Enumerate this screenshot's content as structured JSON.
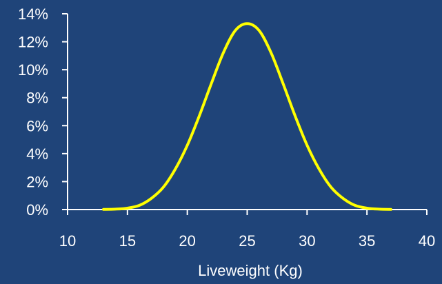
{
  "colors": {
    "background": "#1f4479",
    "axis": "#ffffff",
    "line": "#ffff00"
  },
  "chart_data": {
    "type": "line",
    "title": "",
    "xlabel": "Liveweight (Kg)",
    "ylabel": "",
    "xlim": [
      10,
      40
    ],
    "ylim": [
      0,
      14
    ],
    "x_ticks": [
      "10",
      "15",
      "20",
      "25",
      "30",
      "35",
      "40"
    ],
    "y_ticks": [
      "0%",
      "2%",
      "4%",
      "6%",
      "8%",
      "10%",
      "12%",
      "14%"
    ],
    "grid": false,
    "legend": "none",
    "series": [
      {
        "color": "#ffff00",
        "x": [
          13,
          14,
          15,
          16,
          17,
          18,
          19,
          20,
          21,
          22,
          23,
          24,
          25,
          26,
          27,
          28,
          29,
          30,
          31,
          32,
          33,
          34,
          35,
          36,
          37
        ],
        "y": [
          0.01,
          0.03,
          0.1,
          0.3,
          0.8,
          1.6,
          2.9,
          4.6,
          6.7,
          9.0,
          11.2,
          12.8,
          13.3,
          12.8,
          11.2,
          9.0,
          6.7,
          4.6,
          2.9,
          1.6,
          0.8,
          0.3,
          0.1,
          0.03,
          0.01
        ]
      }
    ]
  }
}
